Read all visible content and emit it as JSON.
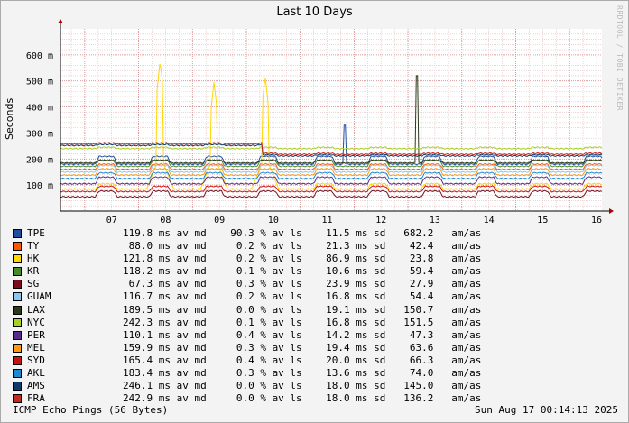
{
  "chart_data": {
    "type": "line",
    "title": "Last 10 Days",
    "ylabel": "Seconds",
    "watermark": "RRDTOOL / TOBI OETIKER",
    "ylim": [
      0,
      700
    ],
    "yticks": [
      {
        "value": 100,
        "label": "100 m"
      },
      {
        "value": 200,
        "label": "200 m"
      },
      {
        "value": 300,
        "label": "300 m"
      },
      {
        "value": 400,
        "label": "400 m"
      },
      {
        "value": 500,
        "label": "500 m"
      },
      {
        "value": 600,
        "label": "600 m"
      }
    ],
    "xticks": [
      "07",
      "08",
      "09",
      "10",
      "11",
      "12",
      "13",
      "14",
      "15",
      "16"
    ],
    "x_range_days": [
      6.55,
      16.6
    ],
    "series": [
      {
        "name": "TPE",
        "color": "#1f4e9f",
        "base": 180,
        "bump": 30,
        "stats": "119.8 ms av md    90.3 % av ls    11.5 ms sd   682.2   am/as"
      },
      {
        "name": "TY",
        "color": "#ff5500",
        "base": 160,
        "bump": 20,
        "stats": " 88.0 ms av md     0.2 % av ls    21.3 ms sd    42.4   am/as"
      },
      {
        "name": "HK",
        "color": "#ffd700",
        "base": 85,
        "bump": 20,
        "stats": "121.8 ms av md     0.2 % av ls    86.9 ms sd    23.8   am/as"
      },
      {
        "name": "KR",
        "color": "#4a8a2a",
        "base": 172,
        "bump": 22,
        "stats": "118.2 ms av md     0.1 % av ls    10.6 ms sd    59.4   am/as"
      },
      {
        "name": "SG",
        "color": "#7a0e1e",
        "base": 55,
        "bump": 22,
        "stats": " 67.3 ms av md     0.3 % av ls    23.9 ms sd    27.9   am/as"
      },
      {
        "name": "GUAM",
        "color": "#88c8f0",
        "base": 150,
        "bump": 25,
        "stats": "116.7 ms av md     0.2 % av ls    16.8 ms sd    54.4   am/as"
      },
      {
        "name": "LAX",
        "color": "#2a3a18",
        "base": 185,
        "bump": 10,
        "stats": "189.5 ms av md     0.0 % av ls    19.1 ms sd   150.7   am/as"
      },
      {
        "name": "NYC",
        "color": "#a8d020",
        "base": 240,
        "bump": 5,
        "stats": "242.3 ms av md     0.1 % av ls    16.8 ms sd   151.5   am/as"
      },
      {
        "name": "PER",
        "color": "#5a2a8a",
        "base": 105,
        "bump": 25,
        "stats": "110.1 ms av md     0.4 % av ls    14.2 ms sd    47.3   am/as"
      },
      {
        "name": "MEL",
        "color": "#ff9910",
        "base": 138,
        "bump": 24,
        "stats": "159.9 ms av md     0.3 % av ls    19.4 ms sd    63.6   am/as"
      },
      {
        "name": "SYD",
        "color": "#cc1010",
        "base": 75,
        "bump": 20,
        "stats": "165.4 ms av md     0.4 % av ls    20.0 ms sd    66.3   am/as"
      },
      {
        "name": "AKL",
        "color": "#1e88d0",
        "base": 125,
        "bump": 22,
        "stats": "183.4 ms av md     0.3 % av ls    13.6 ms sd    74.0   am/as"
      },
      {
        "name": "AMS",
        "color": "#103a6a",
        "base": 252,
        "bump": 4,
        "stats": "246.1 ms av md     0.0 % av ls    18.0 ms sd   145.0   am/as"
      },
      {
        "name": "FRA",
        "color": "#c8281e",
        "base": 258,
        "bump": 4,
        "stats": "242.9 ms av md     0.0 % av ls    18.0 ms sd   136.2   am/as"
      }
    ],
    "hk_spikes": [
      {
        "day": 8.4,
        "value": 580
      },
      {
        "day": 9.4,
        "value": 500
      },
      {
        "day": 10.35,
        "value": 520
      }
    ],
    "footer_left": "ICMP Echo Pings (56 Bytes)",
    "footer_right": "Sun Aug 17 00:14:13 2025"
  }
}
